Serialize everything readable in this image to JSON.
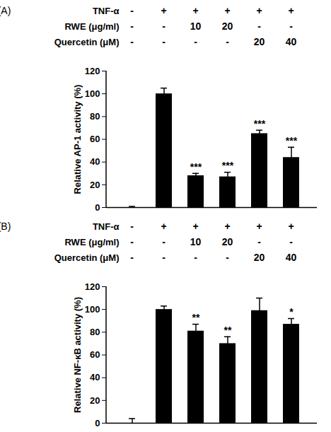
{
  "chart_data": [
    {
      "type": "bar",
      "panel_label": "(A)",
      "conditions": [
        {
          "label": "TNF-α",
          "marks": [
            "-",
            "+",
            "+",
            "+",
            "+",
            "+"
          ]
        },
        {
          "label": "RWE (μg/ml)",
          "marks": [
            "-",
            "-",
            "10",
            "20",
            "-",
            "-"
          ]
        },
        {
          "label": "Quercetin (μM)",
          "marks": [
            "-",
            "-",
            "-",
            "-",
            "20",
            "40"
          ]
        }
      ],
      "ylabel": "Relative AP-1 activity (%)",
      "categories": [
        null,
        null,
        null,
        null,
        null,
        null
      ],
      "values": [
        0,
        100,
        28,
        27,
        65,
        44
      ],
      "errors": [
        1,
        5,
        2,
        4,
        3,
        9
      ],
      "annotations": [
        null,
        null,
        "***",
        "***",
        "***",
        "***"
      ],
      "color": "#000000",
      "ylim": [
        0,
        120
      ],
      "yticks": [
        0,
        20,
        40,
        60,
        80,
        100,
        120
      ],
      "grid": false
    },
    {
      "type": "bar",
      "panel_label": "(B)",
      "conditions": [
        {
          "label": "TNF-α",
          "marks": [
            "-",
            "+",
            "+",
            "+",
            "+",
            "+"
          ]
        },
        {
          "label": "RWE (μg/ml)",
          "marks": [
            "-",
            "-",
            "10",
            "20",
            "-",
            "-"
          ]
        },
        {
          "label": "Quercetin (μM)",
          "marks": [
            "-",
            "-",
            "-",
            "-",
            "20",
            "40"
          ]
        }
      ],
      "ylabel": "Relative NF-κB activity (%)",
      "categories": [
        null,
        null,
        null,
        null,
        null,
        null
      ],
      "values": [
        0,
        100,
        81,
        70,
        99,
        87
      ],
      "errors": [
        4,
        3,
        6,
        6,
        11,
        5
      ],
      "annotations": [
        null,
        null,
        "**",
        "**",
        null,
        "*"
      ],
      "color": "#000000",
      "ylim": [
        0,
        120
      ],
      "yticks": [
        0,
        20,
        40,
        60,
        80,
        100,
        120
      ],
      "grid": false
    }
  ]
}
